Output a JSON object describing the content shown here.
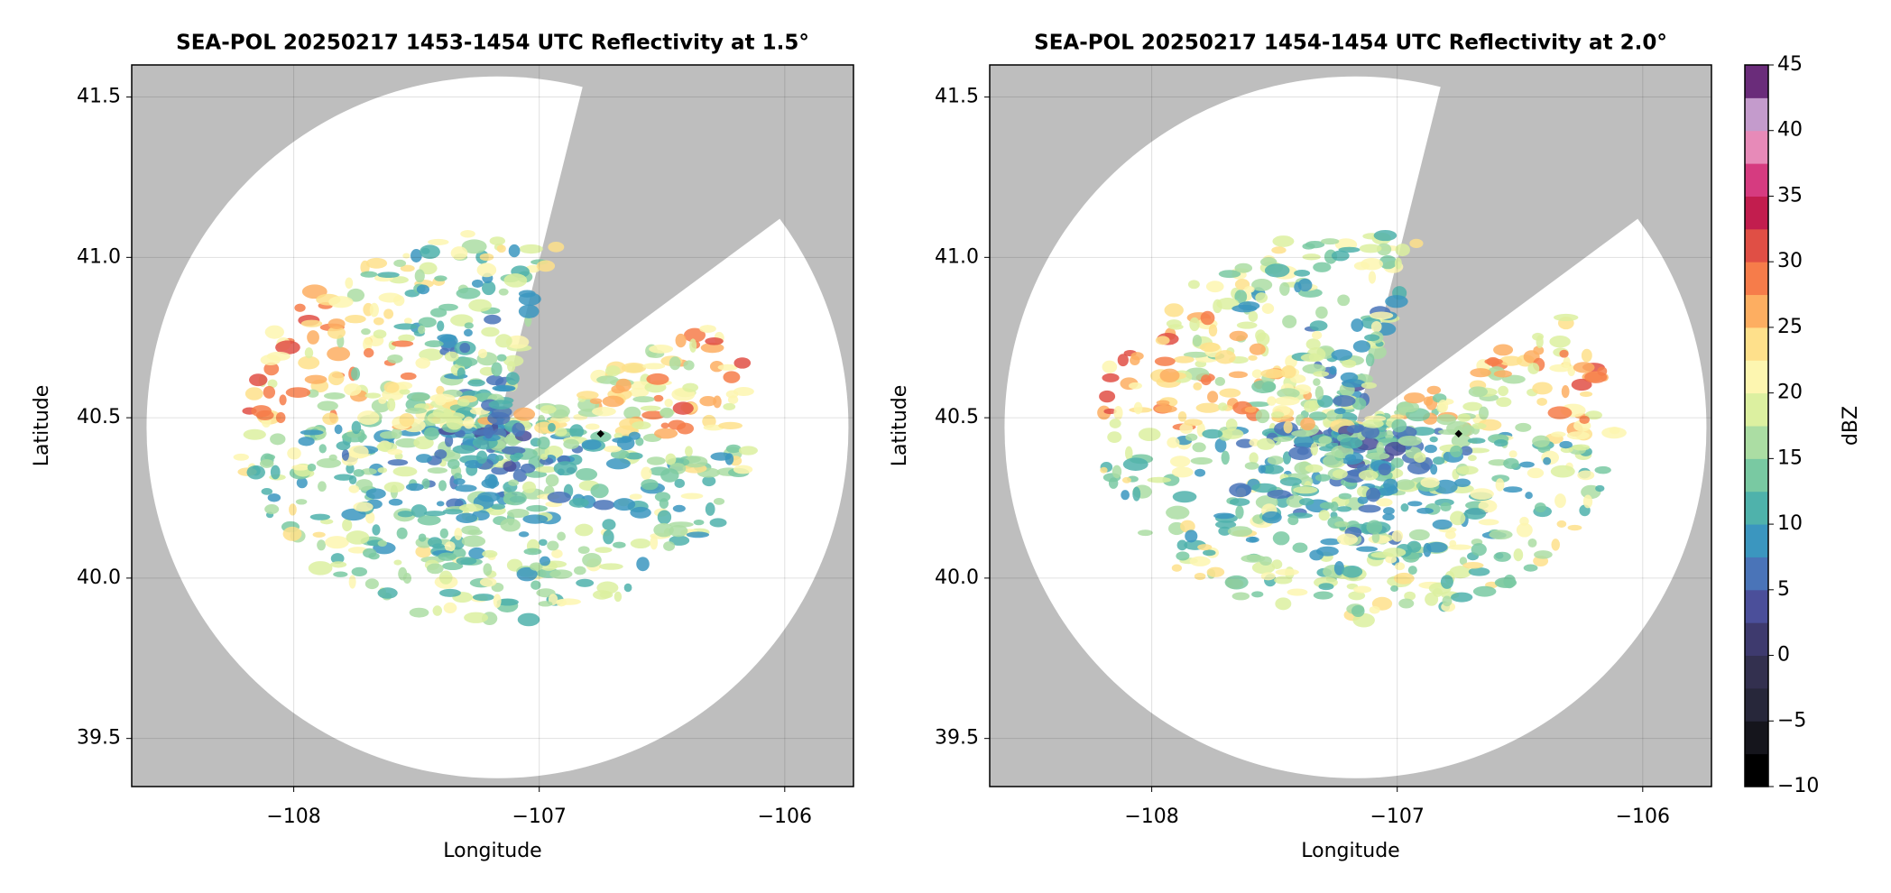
{
  "chart_data": [
    {
      "type": "pcolor",
      "title": "SEA-POL 20250217 1453-1454 UTC Reflectivity at 1.5°",
      "x_label": "Longitude",
      "y_label": "Latitude",
      "xlim": [
        -108.66,
        -105.72
      ],
      "ylim": [
        39.35,
        41.6
      ],
      "xticks": [
        {
          "value": -108,
          "label": "−108"
        },
        {
          "value": -107,
          "label": "−107"
        },
        {
          "value": -106,
          "label": "−106"
        }
      ],
      "yticks": [
        39.5,
        {
          "value": 40,
          "label": "40.0"
        },
        40.5,
        {
          "value": 41,
          "label": "41.0"
        },
        41.5
      ],
      "grid": true,
      "x": [
        -106.75
      ],
      "values": [
        40.45
      ]
    },
    {
      "type": "pcolor",
      "title": "SEA-POL 20250217 1454-1454 UTC Reflectivity at 2.0°",
      "x_label": "Longitude",
      "y_label": "Latitude",
      "xlim": [
        -108.66,
        -105.72
      ],
      "ylim": [
        39.35,
        41.6
      ],
      "xticks": [
        {
          "value": -108,
          "label": "−108"
        },
        {
          "value": -107,
          "label": "−107"
        },
        {
          "value": -106,
          "label": "−106"
        }
      ],
      "yticks": [
        39.5,
        {
          "value": 40,
          "label": "40.0"
        },
        40.5,
        {
          "value": 41,
          "label": "41.0"
        },
        41.5
      ],
      "grid": true,
      "x": [
        -106.75
      ],
      "values": [
        40.45
      ],
      "colorbar": {
        "label": "dBZ",
        "lim": [
          -10,
          45
        ],
        "ticks": [
          {
            "value": -10,
            "label": "−10"
          },
          {
            "value": -5,
            "label": "−5"
          },
          0,
          5,
          10,
          15,
          20,
          25,
          30,
          35,
          40,
          45
        ],
        "colors": [
          "#000000",
          "#15151c",
          "#27273a",
          "#33304f",
          "#3e3a6e",
          "#4b4f9a",
          "#4a74b8",
          "#3b96bf",
          "#4fb2ab",
          "#79c9a2",
          "#abdda3",
          "#dcf0a0",
          "#fdf6b0",
          "#fee08b",
          "#fdae61",
          "#f67c4a",
          "#e04f45",
          "#c21d4e",
          "#d63b80",
          "#e78ab8",
          "#c49bcc",
          "#6a2c7a"
        ]
      }
    }
  ]
}
